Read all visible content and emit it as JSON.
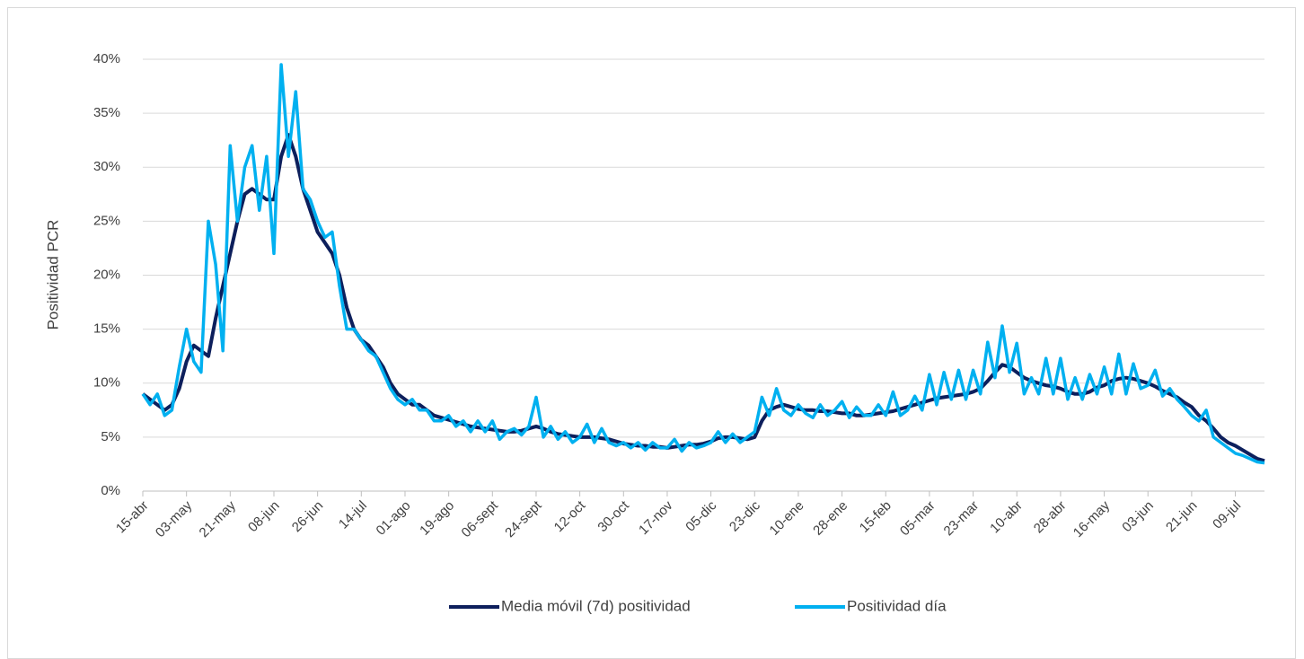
{
  "chart_data": {
    "type": "line",
    "y_label": "Positividad PCR",
    "categories": [
      "15-abr",
      null,
      null,
      null,
      null,
      null,
      "03-may",
      null,
      null,
      null,
      null,
      null,
      "21-may",
      null,
      null,
      null,
      null,
      null,
      "08-jun",
      null,
      null,
      null,
      null,
      null,
      "26-jun",
      null,
      null,
      null,
      null,
      null,
      "14-jul",
      null,
      null,
      null,
      null,
      null,
      "01-ago",
      null,
      null,
      null,
      null,
      null,
      "19-ago",
      null,
      null,
      null,
      null,
      null,
      "06-sept",
      null,
      null,
      null,
      null,
      null,
      "24-sept",
      null,
      null,
      null,
      null,
      null,
      "12-oct",
      null,
      null,
      null,
      null,
      null,
      "30-oct",
      null,
      null,
      null,
      null,
      null,
      "17-nov",
      null,
      null,
      null,
      null,
      null,
      "05-dic",
      null,
      null,
      null,
      null,
      null,
      "23-dic",
      null,
      null,
      null,
      null,
      null,
      "10-ene",
      null,
      null,
      null,
      null,
      null,
      "28-ene",
      null,
      null,
      null,
      null,
      null,
      "15-feb",
      null,
      null,
      null,
      null,
      null,
      "05-mar",
      null,
      null,
      null,
      null,
      null,
      "23-mar",
      null,
      null,
      null,
      null,
      null,
      "10-abr",
      null,
      null,
      null,
      null,
      null,
      "28-abr",
      null,
      null,
      null,
      null,
      null,
      "16-may",
      null,
      null,
      null,
      null,
      null,
      "03-jun",
      null,
      null,
      null,
      null,
      null,
      "21-jun",
      null,
      null,
      null,
      null,
      null,
      "09-jul",
      null,
      null,
      null,
      null
    ],
    "series": [
      {
        "name": "Media móvil (7d) positividad",
        "color": "#0d1f5c",
        "values": [
          9,
          8.5,
          8,
          7.5,
          8,
          9.5,
          12,
          13.5,
          13,
          12.5,
          16,
          19,
          22,
          25,
          27.5,
          28,
          27.5,
          27,
          27,
          31,
          33,
          31,
          28,
          26,
          24,
          23,
          22,
          20,
          17,
          15,
          14,
          13.5,
          12.5,
          11.5,
          10,
          9,
          8.5,
          8,
          8,
          7.5,
          7,
          6.8,
          6.6,
          6.4,
          6.2,
          6.0,
          5.9,
          5.8,
          5.7,
          5.6,
          5.5,
          5.5,
          5.6,
          5.8,
          6.0,
          5.8,
          5.5,
          5.3,
          5.2,
          5.1,
          5.0,
          5.0,
          5.0,
          4.9,
          4.8,
          4.6,
          4.4,
          4.3,
          4.2,
          4.2,
          4.1,
          4.1,
          4.0,
          4.1,
          4.2,
          4.3,
          4.3,
          4.4,
          4.6,
          4.9,
          5.0,
          5.0,
          4.9,
          4.8,
          5.0,
          6.5,
          7.5,
          7.8,
          8.0,
          7.8,
          7.6,
          7.5,
          7.5,
          7.4,
          7.4,
          7.3,
          7.2,
          7.2,
          7.0,
          7.0,
          7.1,
          7.2,
          7.3,
          7.4,
          7.6,
          7.8,
          8.0,
          8.2,
          8.4,
          8.6,
          8.7,
          8.8,
          8.9,
          9.0,
          9.2,
          9.5,
          10.2,
          11.0,
          11.7,
          11.5,
          11.0,
          10.5,
          10.2,
          10.0,
          9.8,
          9.7,
          9.5,
          9.2,
          9.0,
          9.0,
          9.2,
          9.6,
          9.8,
          10.2,
          10.4,
          10.5,
          10.4,
          10.2,
          10.0,
          9.7,
          9.3,
          9.0,
          8.7,
          8.2,
          7.8,
          7.0,
          6.5,
          5.8,
          5.0,
          4.5,
          4.2,
          3.8,
          3.4,
          3.0,
          2.8
        ]
      },
      {
        "name": "Positividad día",
        "color": "#00b0f0",
        "values": [
          9,
          8,
          9,
          7,
          7.5,
          11.5,
          15,
          12,
          11,
          25,
          21,
          13,
          32,
          25,
          30,
          32,
          26,
          31,
          22,
          39.5,
          31,
          37,
          28,
          27,
          25,
          23.5,
          24,
          19,
          15,
          15,
          14,
          13,
          12.5,
          11,
          9.5,
          8.5,
          8,
          8.5,
          7.5,
          7.5,
          6.5,
          6.5,
          7,
          6,
          6.5,
          5.5,
          6.5,
          5.5,
          6.5,
          4.8,
          5.5,
          5.8,
          5.2,
          6,
          8.7,
          5.0,
          6.0,
          4.8,
          5.5,
          4.5,
          5.0,
          6.2,
          4.5,
          5.8,
          4.5,
          4.2,
          4.5,
          4.0,
          4.5,
          3.8,
          4.5,
          4.0,
          4.0,
          4.8,
          3.7,
          4.5,
          4.0,
          4.2,
          4.5,
          5.5,
          4.5,
          5.3,
          4.5,
          5.0,
          5.5,
          8.7,
          7.0,
          9.5,
          7.5,
          7.0,
          8.0,
          7.2,
          6.8,
          8.0,
          7.0,
          7.5,
          8.3,
          6.8,
          7.8,
          7.0,
          7.0,
          8.0,
          7.0,
          9.2,
          7.0,
          7.5,
          8.8,
          7.5,
          10.8,
          8.0,
          11.0,
          8.5,
          11.2,
          8.5,
          11.2,
          9.0,
          13.8,
          10.5,
          15.3,
          11.0,
          13.7,
          9.0,
          10.5,
          9.0,
          12.3,
          9.0,
          12.3,
          8.5,
          10.5,
          8.5,
          10.8,
          9.0,
          11.5,
          9.0,
          12.7,
          9.0,
          11.8,
          9.5,
          9.8,
          11.2,
          8.8,
          9.5,
          8.5,
          7.8,
          7.0,
          6.5,
          7.5,
          5.0,
          4.5,
          4.0,
          3.5,
          3.3,
          3.0,
          2.7,
          2.6
        ]
      }
    ],
    "ylim": [
      0,
      40
    ],
    "yticks": [
      {
        "value": 0,
        "label": "0%"
      },
      {
        "value": 5,
        "label": "5%"
      },
      {
        "value": 10,
        "label": "10%"
      },
      {
        "value": 15,
        "label": "15%"
      },
      {
        "value": 20,
        "label": "20%"
      },
      {
        "value": 25,
        "label": "25%"
      },
      {
        "value": 30,
        "label": "30%"
      },
      {
        "value": 35,
        "label": "35%"
      },
      {
        "value": 40,
        "label": "40%"
      }
    ],
    "grid": true,
    "legend": "bottom"
  }
}
